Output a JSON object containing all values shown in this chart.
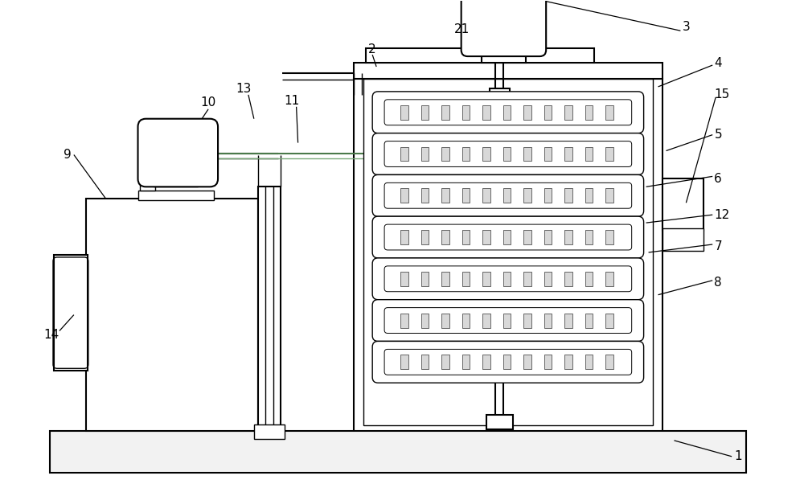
{
  "bg_color": "#ffffff",
  "line_color": "#000000",
  "fig_width": 10.0,
  "fig_height": 6.07,
  "lw_main": 1.5,
  "lw_thin": 1.0,
  "lw_ann": 0.9,
  "font_size": 11
}
